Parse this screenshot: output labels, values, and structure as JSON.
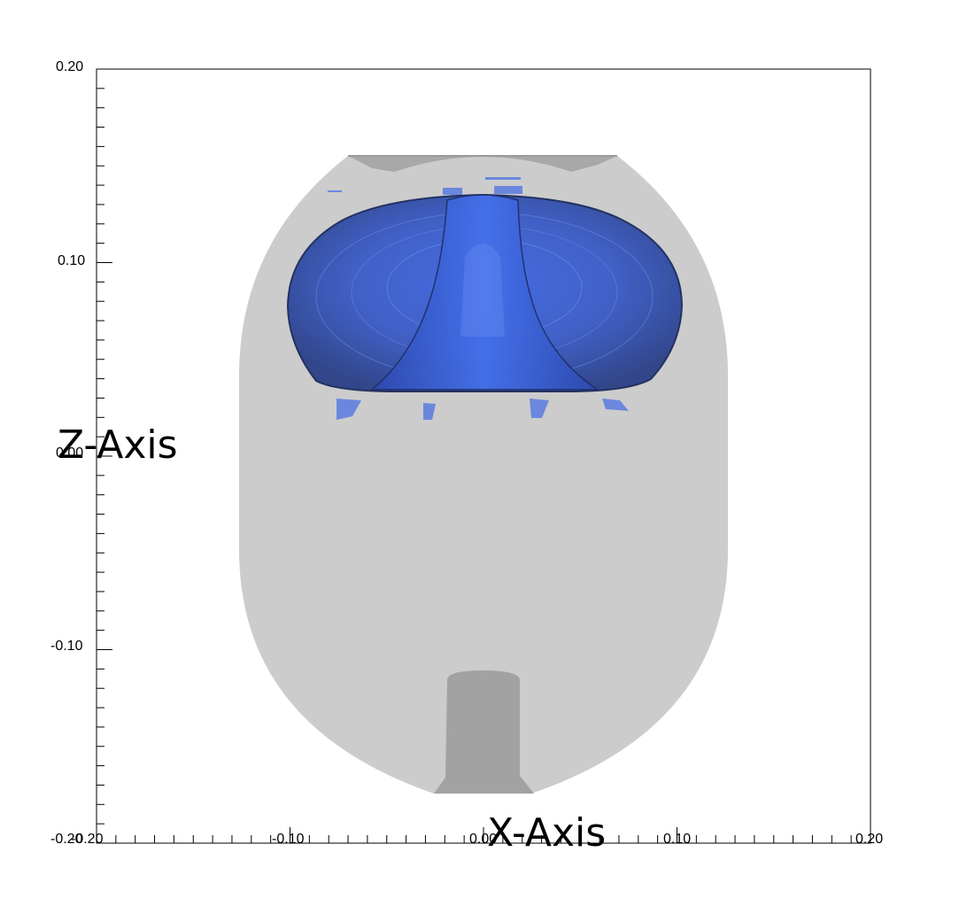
{
  "axes": {
    "x_title": "X-Axis",
    "z_title": "Z-Axis",
    "x_ticks": [
      "-0.20",
      "-0.10",
      "0.00",
      "0.10",
      "0.20"
    ],
    "z_ticks": [
      "0.20",
      "0.10",
      "0.00",
      "-0.10",
      "-0.20"
    ],
    "x_range": [
      -0.2,
      0.2
    ],
    "z_range": [
      -0.2,
      0.2
    ]
  },
  "colors": {
    "background": "#ffffff",
    "outer_body": "#cccccc",
    "inner_parts": "#a2a2a2",
    "blue_volume": "#3d63d0",
    "blue_edge": "#1f2d55",
    "axis_line": "#000000"
  }
}
